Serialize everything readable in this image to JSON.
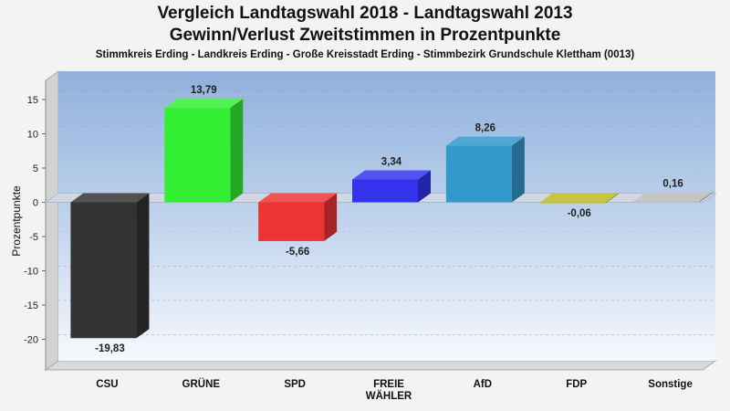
{
  "title_line1": "Vergleich Landtagswahl 2018 - Landtagswahl 2013",
  "title_line2": "Gewinn/Verlust Zweitstimmen in Prozentpunkte",
  "subtitle": "Stimmkreis Erding - Landkreis Erding - Große Kreisstadt Erding - Stimmbezirk Grundschule Klettham (0013)",
  "chart_data": {
    "type": "bar",
    "ylabel": "Prozentpunkte",
    "ylim": [
      -25,
      18
    ],
    "yticks": [
      15,
      10,
      5,
      0,
      -5,
      -10,
      -15,
      -20
    ],
    "grid": true,
    "categories": [
      {
        "label": [
          "CSU"
        ],
        "value": -19.83,
        "value_label": "-19,83",
        "color": "#333333"
      },
      {
        "label": [
          "GRÜNE"
        ],
        "value": 13.79,
        "value_label": "13,79",
        "color": "#33ee33"
      },
      {
        "label": [
          "SPD"
        ],
        "value": -5.66,
        "value_label": "-5,66",
        "color": "#ee3333"
      },
      {
        "label": [
          "FREIE",
          "WÄHLER"
        ],
        "value": 3.34,
        "value_label": "3,34",
        "color": "#3333ee"
      },
      {
        "label": [
          "AfD"
        ],
        "value": 8.26,
        "value_label": "8,26",
        "color": "#3399cc"
      },
      {
        "label": [
          "FDP"
        ],
        "value": -0.06,
        "value_label": "-0,06",
        "color": "#bbbb22"
      },
      {
        "label": [
          "Sonstige"
        ],
        "value": 0.16,
        "value_label": "0,16",
        "color": "#bbbbbb"
      }
    ]
  }
}
